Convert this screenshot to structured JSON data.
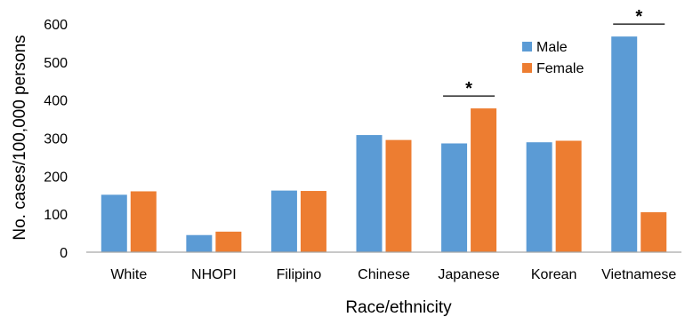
{
  "chart_data": {
    "type": "bar",
    "title": "",
    "xlabel": "Race/ethnicity",
    "ylabel": "No. cases/100,000 persons",
    "ylim": [
      0,
      600
    ],
    "yticks": [
      0,
      100,
      200,
      300,
      400,
      500,
      600
    ],
    "categories": [
      "White",
      "NHOPI",
      "Filipino",
      "Chinese",
      "Japanese",
      "Korean",
      "Vietnamese"
    ],
    "series": [
      {
        "name": "Male",
        "color": "#5b9bd5",
        "values": [
          151,
          45,
          162,
          308,
          286,
          289,
          567
        ]
      },
      {
        "name": "Female",
        "color": "#ed7d31",
        "values": [
          160,
          54,
          161,
          295,
          378,
          293,
          105
        ]
      }
    ],
    "legend_position": "top-right",
    "grid": false,
    "significance": [
      {
        "category": "Japanese",
        "label": "*"
      },
      {
        "category": "Vietnamese",
        "label": "*"
      }
    ]
  }
}
